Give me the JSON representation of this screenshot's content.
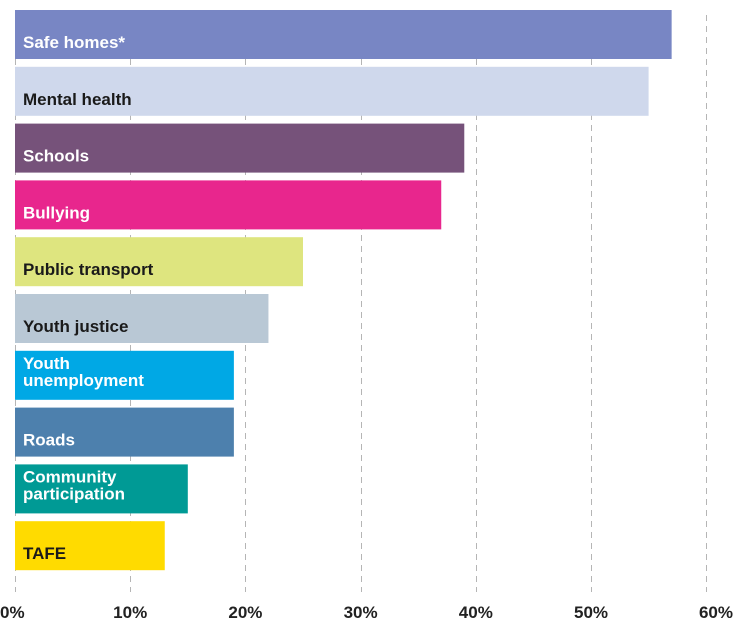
{
  "chart_data": {
    "type": "bar",
    "orientation": "horizontal",
    "title": "",
    "xlabel": "",
    "ylabel": "",
    "xlim": [
      0,
      60
    ],
    "grid": true,
    "x_ticks": [
      "0%",
      "10%",
      "20%",
      "30%",
      "40%",
      "50%",
      "60%"
    ],
    "categories": [
      [
        "Safe homes*"
      ],
      [
        "Mental health"
      ],
      [
        "Schools"
      ],
      [
        "Bullying"
      ],
      [
        "Public transport"
      ],
      [
        "Youth justice"
      ],
      [
        "Youth",
        "unemployment"
      ],
      [
        "Roads"
      ],
      [
        "Community",
        "participation"
      ],
      [
        "TAFE"
      ]
    ],
    "values": [
      57,
      55,
      39,
      37,
      25,
      22,
      19,
      19,
      15,
      13
    ],
    "colors": [
      "#7886c4",
      "#cfd8ec",
      "#76527a",
      "#e8268d",
      "#dee57f",
      "#b9c8d5",
      "#00a8e5",
      "#4d80ad",
      "#009a95",
      "#ffdb00"
    ],
    "label_colors": [
      "#ffffff",
      "#1a1a1a",
      "#ffffff",
      "#ffffff",
      "#1a1a1a",
      "#1a1a1a",
      "#ffffff",
      "#ffffff",
      "#ffffff",
      "#1a1a1a"
    ]
  }
}
